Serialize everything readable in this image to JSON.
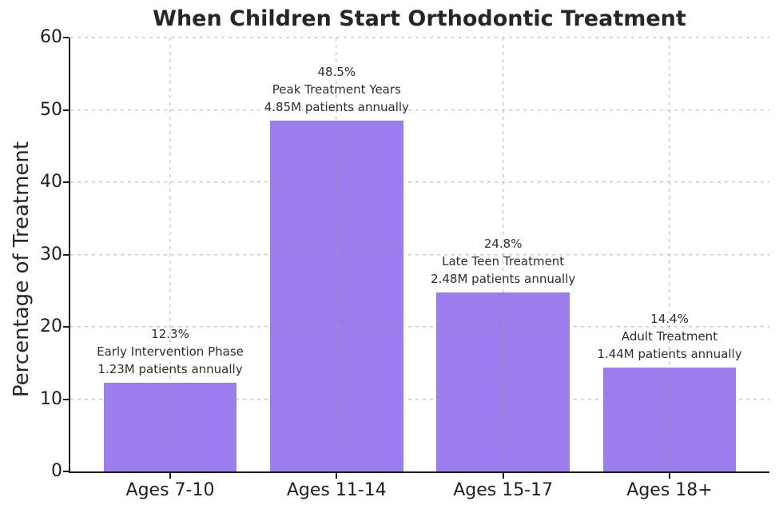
{
  "chart_data": {
    "type": "bar",
    "title": "When Children Start Orthodontic Treatment",
    "xlabel": "",
    "ylabel": "Percentage of Treatment",
    "categories": [
      "Ages 7-10",
      "Ages 11-14",
      "Ages 15-17",
      "Ages 18+"
    ],
    "values": [
      12.3,
      48.5,
      24.8,
      14.4
    ],
    "yticks": [
      0,
      10,
      20,
      30,
      40,
      50,
      60
    ],
    "ylim": [
      0,
      60
    ],
    "xlim": [
      -0.6,
      3.6
    ],
    "bar_relative_width": 0.8,
    "bar_color": "#9b7dee",
    "grid": true,
    "grid_style": "dashed",
    "grid_color": "#c4c4c4",
    "legend": "none",
    "spines": [
      "left",
      "bottom"
    ],
    "annotations": [
      {
        "lines": [
          "12.3%",
          "Early Intervention Phase",
          "1.23M patients annually"
        ]
      },
      {
        "lines": [
          "48.5%",
          "Peak Treatment Years",
          "4.85M patients annually"
        ]
      },
      {
        "lines": [
          "24.8%",
          "Late Teen Treatment",
          "2.48M patients annually"
        ]
      },
      {
        "lines": [
          "14.4%",
          "Adult Treatment",
          "1.44M patients annually"
        ]
      }
    ]
  }
}
